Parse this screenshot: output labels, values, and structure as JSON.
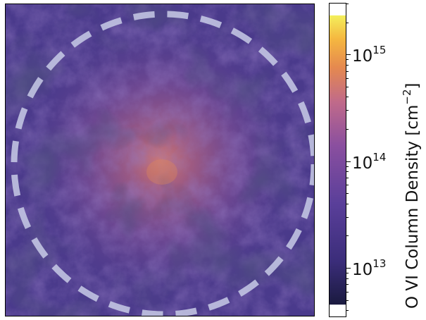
{
  "chart_data": {
    "type": "heatmap",
    "description_visible": "projected gas column density map with dashed circle overlay",
    "colorbar": {
      "label_main": "O VI Column Density [cm",
      "label_exp": "−2",
      "label_close": "]",
      "scale": "log",
      "range": [
        3500000000000.0,
        3000000000000000.0
      ],
      "ticks": [
        {
          "value": 10000000000000.0,
          "base": "10",
          "exp": "13"
        },
        {
          "value": 100000000000000.0,
          "base": "10",
          "exp": "14"
        },
        {
          "value": 1000000000000000.0,
          "base": "10",
          "exp": "15"
        }
      ],
      "colormap": [
        "#1a1a3f",
        "#3b2d7a",
        "#5a3f9a",
        "#8a4f9f",
        "#c06a8a",
        "#e5894f",
        "#f5b840",
        "#f3ef5c"
      ]
    },
    "overlay": {
      "shape": "dashed-circle",
      "color": "#c8cbe6"
    }
  }
}
